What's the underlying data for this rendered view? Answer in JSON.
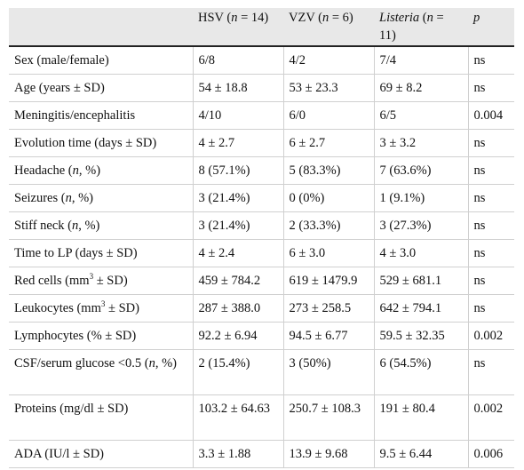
{
  "header": {
    "col0": "",
    "col1_pre": "HSV (",
    "col1_n": "n",
    "col1_post": " = 14)",
    "col2_pre": "VZV (",
    "col2_n": "n",
    "col2_post": " = 6)",
    "col3_name": "Listeria",
    "col3_pre": " (",
    "col3_n": "n",
    "col3_post": " = 11)",
    "col4": "p"
  },
  "rows": [
    {
      "label": "Sex (male/female)",
      "hsv": "6/8",
      "vzv": "4/2",
      "listeria": "7/4",
      "p": "ns"
    },
    {
      "label": "Age (years ± SD)",
      "hsv": "54 ± 18.8",
      "vzv": "53 ± 23.3",
      "listeria": "69 ± 8.2",
      "p": "ns"
    },
    {
      "label": "Meningitis/encephalitis",
      "hsv": "4/10",
      "vzv": "6/0",
      "listeria": "6/5",
      "p": "0.004"
    },
    {
      "label": "Evolution time (days ± SD)",
      "hsv": "4 ± 2.7",
      "vzv": "6 ± 2.7",
      "listeria": "3 ± 3.2",
      "p": "ns"
    },
    {
      "label_pre": "Headache (",
      "label_it": "n",
      "label_post": ", %)",
      "hsv": "8 (57.1%)",
      "vzv": "5 (83.3%)",
      "listeria": "7 (63.6%)",
      "p": "ns"
    },
    {
      "label_pre": "Seizures (",
      "label_it": "n",
      "label_post": ", %)",
      "hsv": "3 (21.4%)",
      "vzv": "0 (0%)",
      "listeria": "1 (9.1%)",
      "p": "ns"
    },
    {
      "label_pre": "Stiff neck (",
      "label_it": "n",
      "label_post": ", %)",
      "hsv": "3 (21.4%)",
      "vzv": "2 (33.3%)",
      "listeria": "3 (27.3%)",
      "p": "ns"
    },
    {
      "label": "Time to LP (days ± SD)",
      "hsv": "4 ± 2.4",
      "vzv": "6 ± 3.0",
      "listeria": "4 ± 3.0",
      "p": "ns"
    },
    {
      "label_pre": "Red cells (mm",
      "label_sup": "3",
      "label_post": " ± SD)",
      "hsv": "459 ± 784.2",
      "vzv": "619 ± 1479.9",
      "listeria": "529 ± 681.1",
      "p": "ns"
    },
    {
      "label_pre": "Leukocytes (mm",
      "label_sup": "3",
      "label_post": " ± SD)",
      "hsv": "287 ± 388.0",
      "vzv": "273 ± 258.5",
      "listeria": "642 ± 794.1",
      "p": "ns"
    },
    {
      "label": "Lymphocytes (% ± SD)",
      "hsv": "92.2 ± 6.94",
      "vzv": "94.5 ± 6.77",
      "listeria": "59.5 ± 32.35",
      "p": "0.002"
    },
    {
      "label_pre": "CSF/serum glucose <0.5 (",
      "label_it": "n",
      "label_post": ", %)",
      "hsv": "2 (15.4%)",
      "vzv": "3 (50%)",
      "listeria": "6 (54.5%)",
      "p": "ns"
    },
    {
      "label": "Proteins (mg/dl ± SD)",
      "hsv": "103.2 ± 64.63",
      "vzv": "250.7 ± 108.3",
      "listeria": "191 ± 80.4",
      "p": "0.002"
    },
    {
      "label": "ADA (IU/l ± SD)",
      "hsv": "3.3 ± 1.88",
      "vzv": "13.9 ± 9.68",
      "listeria": "9.5 ± 6.44",
      "p": "0.006"
    }
  ]
}
